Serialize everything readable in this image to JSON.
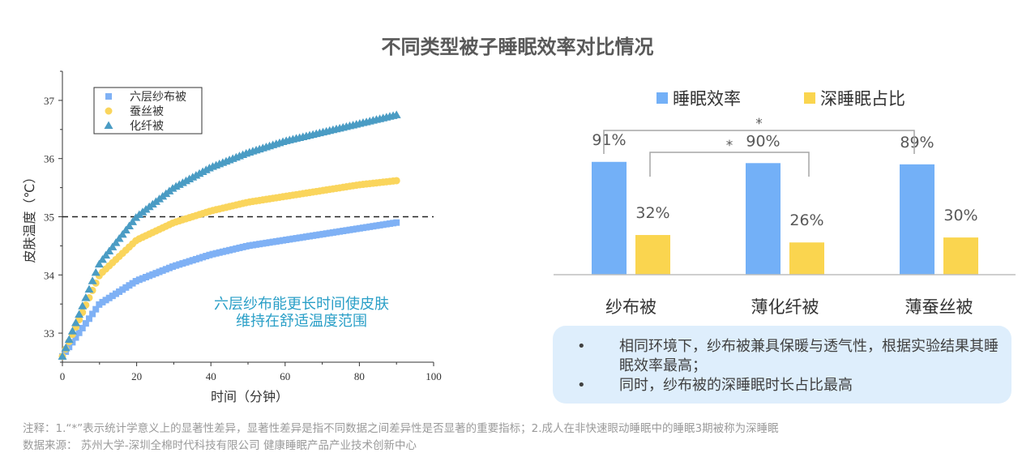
{
  "title": "不同类型被子睡眠效率对比情况",
  "chart_data": [
    {
      "type": "scatter",
      "xlabel": "时间（分钟）",
      "ylabel": "皮肤温度（℃）",
      "xlim": [
        0,
        100
      ],
      "ylim": [
        32.5,
        37.5
      ],
      "x_ticks": [
        "0",
        "20",
        "40",
        "60",
        "80",
        "100"
      ],
      "y_ticks": [
        "33",
        "34",
        "35",
        "36",
        "37"
      ],
      "reference_line": {
        "y": 35,
        "style": "dashed"
      },
      "series": [
        {
          "name": "六层纱布被",
          "marker": "square",
          "color": "#7fb1f5",
          "x": [
            0,
            10,
            20,
            30,
            40,
            50,
            60,
            70,
            80,
            90
          ],
          "values": [
            32.6,
            33.5,
            33.9,
            34.15,
            34.35,
            34.5,
            34.6,
            34.7,
            34.8,
            34.9
          ]
        },
        {
          "name": "蚕丝被",
          "marker": "circle",
          "color": "#fad55c",
          "x": [
            0,
            10,
            20,
            30,
            40,
            50,
            60,
            70,
            80,
            90
          ],
          "values": [
            32.6,
            34.0,
            34.6,
            34.9,
            35.1,
            35.25,
            35.35,
            35.45,
            35.55,
            35.62
          ]
        },
        {
          "name": "化纤被",
          "marker": "triangle",
          "color": "#4a9cc4",
          "x": [
            0,
            10,
            20,
            30,
            40,
            50,
            60,
            70,
            80,
            90
          ],
          "values": [
            32.6,
            34.2,
            35.0,
            35.5,
            35.85,
            36.1,
            36.3,
            36.45,
            36.6,
            36.75
          ]
        }
      ],
      "annotation": [
        "六层纱布能更长时间使皮肤",
        "维持在舒适温度范围"
      ]
    },
    {
      "type": "bar",
      "categories": [
        "纱布被",
        "薄化纤被",
        "薄蚕丝被"
      ],
      "series": [
        {
          "name": "睡眠效率",
          "color": "#73b0f7",
          "values": [
            91,
            90,
            89
          ],
          "labels": [
            "91%",
            "90%",
            "89%"
          ]
        },
        {
          "name": "深睡眠占比",
          "color": "#fad54f",
          "values": [
            32,
            26,
            30
          ],
          "labels": [
            "32%",
            "26%",
            "30%"
          ]
        }
      ],
      "ylim": [
        0,
        100
      ],
      "significance": [
        {
          "from": "纱布被",
          "to": "薄蚕丝被",
          "label": "*"
        },
        {
          "from": "纱布被",
          "to": "薄化纤被",
          "label": "*"
        }
      ]
    }
  ],
  "callout": {
    "bullet": "•",
    "points": [
      "相同环境下，纱布被兼具保暖与透气性，根据实验结果其睡眠效率最高；",
      "同时，纱布被的深睡眠时长占比最高"
    ]
  },
  "footer": {
    "note": "注释：1.“*”表示统计学意义上的显著性差异，显著性差异是指不同数据之间差异性是否显著的重要指标；2.成人在非快速眼动睡眠中的睡眠3期被称为深睡眠",
    "source": "数据来源： 苏州大学-深圳全棉时代科技有限公司 健康睡眠产品产业技术创新中心"
  }
}
